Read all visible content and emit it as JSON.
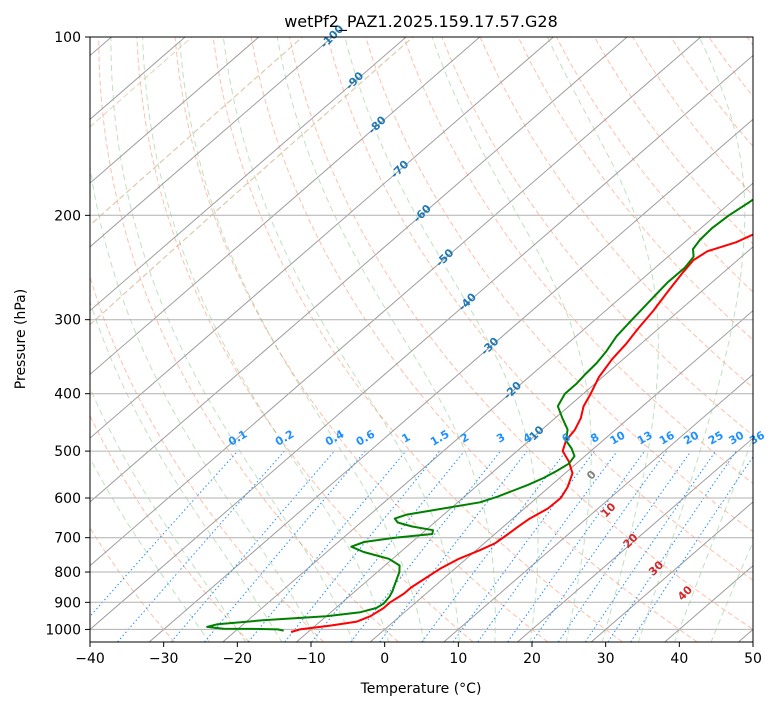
{
  "chart_data": {
    "type": "line",
    "title": "wetPf2_PAZ1.2025.159.17.57.G28",
    "xlabel": "Temperature (°C)",
    "ylabel": "Pressure (hPa)",
    "xlim": [
      -40,
      50
    ],
    "ylim": [
      1050,
      100
    ],
    "y_scale": "log",
    "grid": true,
    "x_ticks": [
      "−40",
      "−30",
      "−20",
      "−10",
      "0",
      "10",
      "20",
      "30",
      "40",
      "50"
    ],
    "y_ticks": [
      {
        "p": 100,
        "label": "100"
      },
      {
        "p": 200,
        "label": "200"
      },
      {
        "p": 300,
        "label": "300"
      },
      {
        "p": 400,
        "label": "400"
      },
      {
        "p": 500,
        "label": "500"
      },
      {
        "p": 600,
        "label": "600"
      },
      {
        "p": 700,
        "label": "700"
      },
      {
        "p": 800,
        "label": "800"
      },
      {
        "p": 900,
        "label": "900"
      },
      {
        "p": 1000,
        "label": "1000"
      }
    ],
    "colors": {
      "temperature": "#ff0000",
      "dewpoint": "#008000",
      "isotherm_label": "#1f77b4",
      "mixing_ratio": "#1e90ff",
      "moist_adiabat_label": "#d62728",
      "zero_label": "#808080"
    },
    "series": [
      {
        "color": "#ff0000",
        "points": [
          [
            -12.3,
            1010
          ],
          [
            -11.5,
            1000
          ],
          [
            -8,
            985
          ],
          [
            -5,
            970
          ],
          [
            -4,
            950
          ],
          [
            -3.5,
            920
          ],
          [
            -3.5,
            900
          ],
          [
            -3,
            870
          ],
          [
            -3,
            850
          ],
          [
            -2.5,
            820
          ],
          [
            -2,
            790
          ],
          [
            -1,
            760
          ],
          [
            0.5,
            735
          ],
          [
            1.5,
            715
          ],
          [
            1.8,
            690
          ],
          [
            2,
            670
          ],
          [
            2.3,
            650
          ],
          [
            3.2,
            625
          ],
          [
            3.3,
            600
          ],
          [
            2.5,
            575
          ],
          [
            1,
            545
          ],
          [
            -1.4,
            520
          ],
          [
            -3.8,
            500
          ],
          [
            -5,
            480
          ],
          [
            -5.5,
            460
          ],
          [
            -6.5,
            440
          ],
          [
            -8,
            420
          ],
          [
            -9,
            400
          ],
          [
            -10.5,
            375
          ],
          [
            -11.5,
            350
          ],
          [
            -12,
            330
          ],
          [
            -12.8,
            310
          ],
          [
            -13.5,
            290
          ],
          [
            -14.5,
            270
          ],
          [
            -15.5,
            250
          ],
          [
            -16,
            238
          ],
          [
            -15.5,
            230
          ],
          [
            -13,
            222
          ],
          [
            -11,
            210
          ],
          [
            -9.5,
            200
          ],
          [
            -8,
            192
          ],
          [
            -5.5,
            185
          ],
          [
            -2.5,
            180
          ],
          [
            0.5,
            177
          ],
          [
            3,
            173
          ],
          [
            4.5,
            168
          ],
          [
            5,
            160
          ],
          [
            6,
            150
          ],
          [
            7.5,
            140
          ],
          [
            9.5,
            130
          ],
          [
            12.5,
            120
          ],
          [
            14.5,
            110
          ],
          [
            16.5,
            105
          ],
          [
            18.2,
            100
          ]
        ]
      },
      {
        "color": "#008000",
        "points": [
          [
            -13.5,
            1005
          ],
          [
            -14.5,
            1000
          ],
          [
            -18,
            998
          ],
          [
            -22,
            997
          ],
          [
            -24.5,
            990
          ],
          [
            -23.5,
            980
          ],
          [
            -18,
            965
          ],
          [
            -10,
            950
          ],
          [
            -6,
            935
          ],
          [
            -4.5,
            920
          ],
          [
            -4.2,
            905
          ],
          [
            -4.5,
            880
          ],
          [
            -5,
            860
          ],
          [
            -5.5,
            845
          ],
          [
            -6,
            830
          ],
          [
            -6.5,
            815
          ],
          [
            -7,
            800
          ],
          [
            -8,
            780
          ],
          [
            -10.5,
            760
          ],
          [
            -15,
            740
          ],
          [
            -17.5,
            725
          ],
          [
            -16.5,
            712
          ],
          [
            -13,
            700
          ],
          [
            -8.5,
            690
          ],
          [
            -9,
            680
          ],
          [
            -12.5,
            670
          ],
          [
            -15,
            660
          ],
          [
            -16,
            650
          ],
          [
            -15,
            640
          ],
          [
            -11,
            625
          ],
          [
            -7,
            610
          ],
          [
            -5.5,
            597
          ],
          [
            -4.5,
            585
          ],
          [
            -3.2,
            570
          ],
          [
            -2.2,
            555
          ],
          [
            -1.5,
            540
          ],
          [
            -1,
            525
          ],
          [
            -1.4,
            510
          ],
          [
            -3,
            495
          ],
          [
            -5,
            480
          ],
          [
            -6.5,
            460
          ],
          [
            -9,
            440
          ],
          [
            -11.5,
            420
          ],
          [
            -12.5,
            400
          ],
          [
            -12.5,
            385
          ],
          [
            -12.8,
            370
          ],
          [
            -13,
            355
          ],
          [
            -13.5,
            340
          ],
          [
            -14.5,
            320
          ],
          [
            -15,
            300
          ],
          [
            -15.5,
            280
          ],
          [
            -16,
            260
          ],
          [
            -16,
            245
          ],
          [
            -16.5,
            235
          ],
          [
            -17.8,
            228
          ],
          [
            -18.3,
            220
          ],
          [
            -18.5,
            210
          ],
          [
            -18.2,
            200
          ],
          [
            -17.5,
            190
          ],
          [
            -17,
            180
          ],
          [
            -16.5,
            170
          ],
          [
            -14.5,
            160
          ],
          [
            -13.5,
            152
          ],
          [
            -11.5,
            145
          ],
          [
            -8.5,
            135
          ],
          [
            -5.5,
            125
          ],
          [
            -4,
            118
          ],
          [
            -3,
            112
          ],
          [
            -1,
            105
          ],
          [
            0.5,
            100
          ]
        ]
      }
    ],
    "isotherm_labels": [
      {
        "t": -100,
        "label": "-100"
      },
      {
        "t": -90,
        "label": "-90"
      },
      {
        "t": -80,
        "label": "-80"
      },
      {
        "t": -70,
        "label": "-70"
      },
      {
        "t": -60,
        "label": "-60"
      },
      {
        "t": -50,
        "label": "-50"
      },
      {
        "t": -40,
        "label": "-40"
      },
      {
        "t": -30,
        "label": "-30"
      },
      {
        "t": -20,
        "label": "-20"
      },
      {
        "t": -10,
        "label": "-10"
      }
    ],
    "mixing_ratio_labels": [
      "0.1",
      "0.2",
      "0.4",
      "0.6",
      "1",
      "1.5",
      "2",
      "3",
      "4",
      "6",
      "8",
      "10",
      "13",
      "16",
      "20",
      "25",
      "30",
      "36"
    ],
    "moist_adiabat_labels": [
      {
        "value": 0,
        "label": "0"
      },
      {
        "value": 10,
        "label": "10"
      },
      {
        "value": 20,
        "label": "20"
      },
      {
        "value": 30,
        "label": "30"
      },
      {
        "value": 40,
        "label": "40"
      }
    ]
  }
}
